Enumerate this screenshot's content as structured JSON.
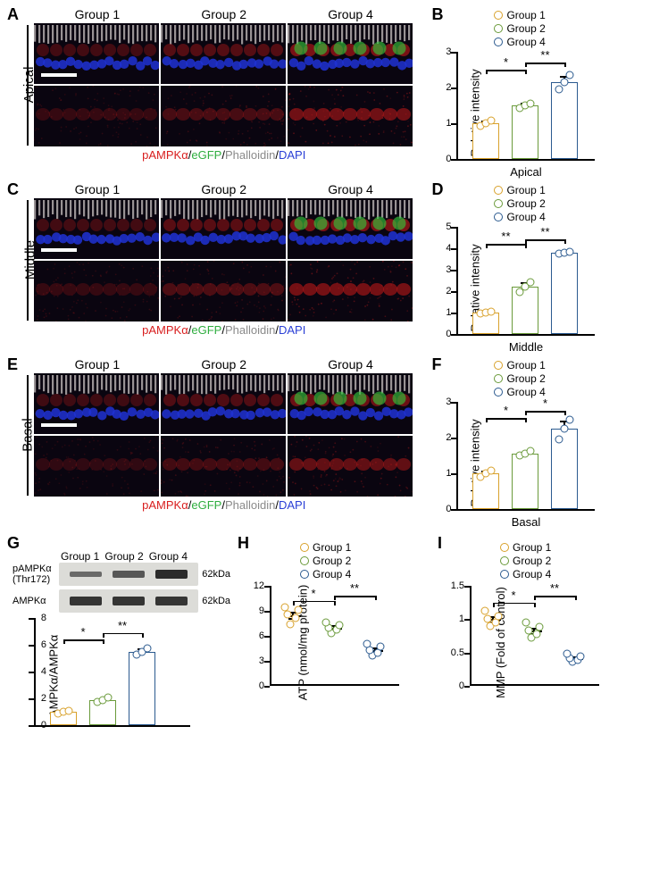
{
  "colors": {
    "group1": "#d8a12b",
    "group2": "#6a9a3a",
    "group4": "#2b5a8f",
    "pampka": "#d81e1e",
    "egfp": "#2fae3f",
    "phalloidin": "#8a8a8a",
    "dapi": "#2a3fd6",
    "bg": "#ffffff",
    "axis": "#000000"
  },
  "groups": {
    "g1": "Group 1",
    "g2": "Group 2",
    "g4": "Group 4"
  },
  "channel_legend": {
    "p": "pAMPKα",
    "sep": "/",
    "e": "eGFP",
    "ph": "Phalloidin",
    "d": "DAPI"
  },
  "panels": {
    "A": {
      "label": "A",
      "region": "Apical"
    },
    "B": {
      "label": "B",
      "ylabel": "Relative intensity",
      "xlabel": "Apical",
      "ylim": [
        0,
        3
      ],
      "yticks": [
        0,
        1,
        2,
        3
      ],
      "bars": [
        {
          "group": "g1",
          "mean": 1.0,
          "color": "#d8a12b",
          "points": [
            0.92,
            1.0,
            1.08
          ],
          "err": 0.08
        },
        {
          "group": "g2",
          "mean": 1.5,
          "color": "#6a9a3a",
          "points": [
            1.42,
            1.5,
            1.55
          ],
          "err": 0.07
        },
        {
          "group": "g4",
          "mean": 2.15,
          "color": "#2b5a8f",
          "points": [
            1.95,
            2.15,
            2.35
          ],
          "err": 0.18
        }
      ],
      "sig": [
        {
          "from": 0,
          "to": 1,
          "y": 2.5,
          "text": "*"
        },
        {
          "from": 1,
          "to": 2,
          "y": 2.7,
          "text": "**"
        }
      ]
    },
    "C": {
      "label": "C",
      "region": "Middle"
    },
    "D": {
      "label": "D",
      "ylabel": "Relative intensity",
      "xlabel": "Middle",
      "ylim": [
        0,
        5
      ],
      "yticks": [
        0,
        1,
        2,
        3,
        4,
        5
      ],
      "bars": [
        {
          "group": "g1",
          "mean": 1.0,
          "color": "#d8a12b",
          "points": [
            0.95,
            1.0,
            1.05
          ],
          "err": 0.05
        },
        {
          "group": "g2",
          "mean": 2.2,
          "color": "#6a9a3a",
          "points": [
            1.95,
            2.2,
            2.4
          ],
          "err": 0.2
        },
        {
          "group": "g4",
          "mean": 3.8,
          "color": "#2b5a8f",
          "points": [
            3.75,
            3.8,
            3.85
          ],
          "err": 0.08
        }
      ],
      "sig": [
        {
          "from": 0,
          "to": 1,
          "y": 4.2,
          "text": "**"
        },
        {
          "from": 1,
          "to": 2,
          "y": 4.4,
          "text": "**"
        }
      ]
    },
    "E": {
      "label": "E",
      "region": "Basal"
    },
    "F": {
      "label": "F",
      "ylabel": "Relative intensity",
      "xlabel": "Basal",
      "ylim": [
        0,
        3
      ],
      "yticks": [
        0,
        1,
        2,
        3
      ],
      "bars": [
        {
          "group": "g1",
          "mean": 1.0,
          "color": "#d8a12b",
          "points": [
            0.9,
            1.0,
            1.08
          ],
          "err": 0.08
        },
        {
          "group": "g2",
          "mean": 1.55,
          "color": "#6a9a3a",
          "points": [
            1.5,
            1.55,
            1.62
          ],
          "err": 0.06
        },
        {
          "group": "g4",
          "mean": 2.25,
          "color": "#2b5a8f",
          "points": [
            1.95,
            2.25,
            2.5
          ],
          "err": 0.22
        }
      ],
      "sig": [
        {
          "from": 0,
          "to": 1,
          "y": 2.55,
          "text": "*"
        },
        {
          "from": 1,
          "to": 2,
          "y": 2.75,
          "text": "*"
        }
      ]
    },
    "G": {
      "label": "G",
      "row1_label": "pAMPKα (Thr172)",
      "row2_label": "AMPKα",
      "kda": "62kDa",
      "band_intensity": {
        "pampka": [
          0.35,
          0.55,
          1.0
        ],
        "ampka": [
          0.9,
          0.9,
          0.9
        ]
      },
      "chart": {
        "ylabel": "pAMPKα/AMPKα",
        "ylim": [
          0,
          8
        ],
        "yticks": [
          0,
          2,
          4,
          6,
          8
        ],
        "bars": [
          {
            "group": "g1",
            "mean": 1.0,
            "color": "#d8a12b",
            "points": [
              0.9,
              1.0,
              1.1
            ],
            "err": 0.1
          },
          {
            "group": "g2",
            "mean": 1.9,
            "color": "#6a9a3a",
            "points": [
              1.75,
              1.9,
              2.05
            ],
            "err": 0.12
          },
          {
            "group": "g4",
            "mean": 5.5,
            "color": "#2b5a8f",
            "points": [
              5.25,
              5.5,
              5.75
            ],
            "err": 0.22
          }
        ],
        "sig": [
          {
            "from": 0,
            "to": 1,
            "y": 6.4,
            "text": "*"
          },
          {
            "from": 1,
            "to": 2,
            "y": 6.9,
            "text": "**"
          }
        ]
      }
    },
    "H": {
      "label": "H",
      "ylabel": "ATP (nmol/mg protein)",
      "ylim": [
        0,
        12
      ],
      "yticks": [
        0,
        3,
        6,
        9,
        12
      ],
      "data": [
        {
          "group": "g1",
          "mean": 8.5,
          "color": "#d8a12b",
          "points": [
            7.4,
            8.1,
            8.6,
            9.1,
            9.4
          ],
          "err": 0.35
        },
        {
          "group": "g2",
          "mean": 7.0,
          "color": "#6a9a3a",
          "points": [
            6.3,
            6.7,
            7.0,
            7.3,
            7.6
          ],
          "err": 0.25
        },
        {
          "group": "g4",
          "mean": 4.3,
          "color": "#2b5a8f",
          "points": [
            3.6,
            4.0,
            4.3,
            4.7,
            5.0
          ],
          "err": 0.28
        }
      ],
      "sig": [
        {
          "from": 0,
          "to": 1,
          "y": 10.2,
          "text": "*"
        },
        {
          "from": 1,
          "to": 2,
          "y": 10.8,
          "text": "**"
        }
      ]
    },
    "I": {
      "label": "I",
      "ylabel": "MMP (Fold of control)",
      "ylim": [
        0,
        1.5
      ],
      "yticks": [
        0,
        0.5,
        1.0,
        1.5
      ],
      "data": [
        {
          "group": "g1",
          "mean": 1.0,
          "color": "#d8a12b",
          "points": [
            0.9,
            0.95,
            1.0,
            1.05,
            1.12
          ],
          "err": 0.04
        },
        {
          "group": "g2",
          "mean": 0.83,
          "color": "#6a9a3a",
          "points": [
            0.72,
            0.78,
            0.83,
            0.88,
            0.95
          ],
          "err": 0.04
        },
        {
          "group": "g4",
          "mean": 0.42,
          "color": "#2b5a8f",
          "points": [
            0.36,
            0.39,
            0.42,
            0.44,
            0.48
          ],
          "err": 0.025
        }
      ],
      "sig": [
        {
          "from": 0,
          "to": 1,
          "y": 1.25,
          "text": "*"
        },
        {
          "from": 1,
          "to": 2,
          "y": 1.35,
          "text": "**"
        }
      ]
    }
  },
  "fonts": {
    "panel_label": 18,
    "axis": 13,
    "tick": 11,
    "legend": 12
  }
}
